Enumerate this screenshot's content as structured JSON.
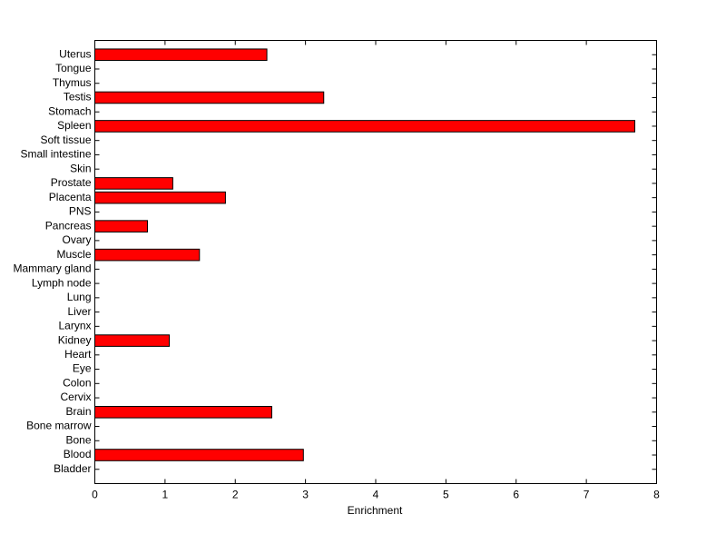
{
  "chart_data": {
    "type": "barh",
    "xlabel": "Enrichment",
    "categories": [
      "Bladder",
      "Blood",
      "Bone",
      "Bone marrow",
      "Brain",
      "Cervix",
      "Colon",
      "Eye",
      "Heart",
      "Kidney",
      "Larynx",
      "Liver",
      "Lung",
      "Lymph node",
      "Mammary gland",
      "Muscle",
      "Ovary",
      "Pancreas",
      "PNS",
      "Placenta",
      "Prostate",
      "Skin",
      "Small intestine",
      "Soft tissue",
      "Spleen",
      "Stomach",
      "Testis",
      "Thymus",
      "Tongue",
      "Uterus"
    ],
    "values": [
      0,
      2.97,
      0,
      0,
      2.52,
      0,
      0,
      0,
      0,
      1.06,
      0,
      0,
      0,
      0,
      0,
      1.49,
      0,
      0.75,
      0,
      1.86,
      1.11,
      0,
      0,
      0,
      7.69,
      0,
      3.26,
      0,
      0,
      2.45
    ],
    "color": "#ff0000",
    "xlim": [
      0,
      8
    ],
    "xticks": [
      0,
      1,
      2,
      3,
      4,
      5,
      6,
      7,
      8
    ]
  }
}
